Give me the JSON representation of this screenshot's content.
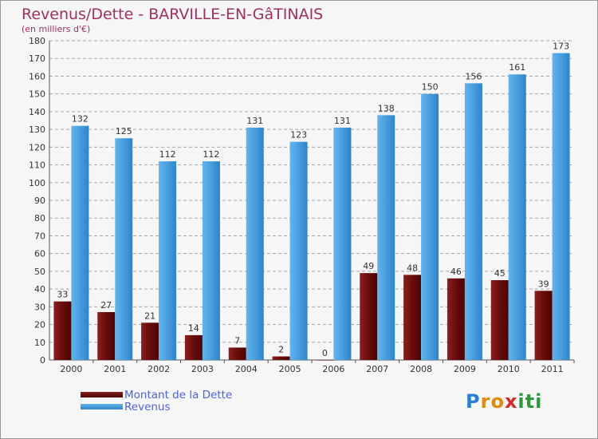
{
  "title": "Revenus/Dette - BARVILLE-EN-GâTINAIS",
  "subtitle": "(en milliers d'€)",
  "logo": {
    "letters": [
      "P",
      "r",
      "o",
      "x",
      "i",
      "t",
      "i"
    ],
    "colors": [
      "#2a7fd4",
      "#e08a10",
      "#e08a10",
      "#d42a2a",
      "#2a9a3a",
      "#2a9a3a",
      "#2a9a3a"
    ]
  },
  "colors": {
    "dette": "#6b0d0d",
    "revenus": "#4aa0e0",
    "grid": "#a8a8a8",
    "title": "#a03060"
  },
  "chart_data": {
    "type": "bar",
    "title": "Revenus/Dette - BARVILLE-EN-GâTINAIS",
    "subtitle": "(en milliers d'€)",
    "categories": [
      "2000",
      "2001",
      "2002",
      "2003",
      "2004",
      "2005",
      "2006",
      "2007",
      "2008",
      "2009",
      "2010",
      "2011"
    ],
    "series": [
      {
        "name": "Montant de la Dette",
        "values": [
          33,
          27,
          21,
          14,
          7,
          2,
          0,
          49,
          48,
          46,
          45,
          39
        ]
      },
      {
        "name": "Revenus",
        "values": [
          132,
          125,
          112,
          112,
          131,
          123,
          131,
          138,
          150,
          156,
          161,
          173
        ]
      }
    ],
    "ylim": [
      0,
      180
    ],
    "yticks": [
      0,
      10,
      20,
      30,
      40,
      50,
      60,
      70,
      80,
      90,
      100,
      110,
      120,
      130,
      140,
      150,
      160,
      170,
      180
    ],
    "grid": true,
    "legend_position": "bottom-left"
  }
}
